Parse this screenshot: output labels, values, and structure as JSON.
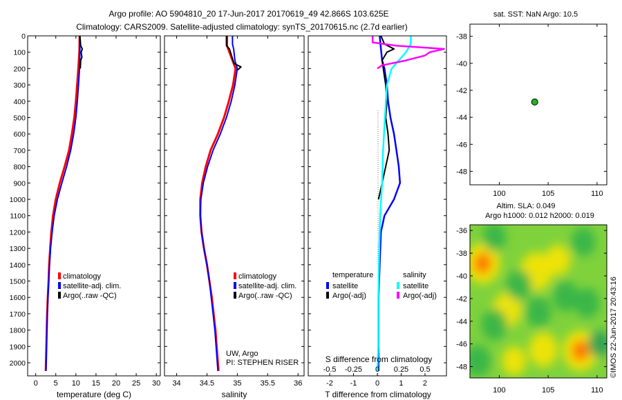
{
  "header": {
    "line1": "Argo profile: AO 5904810_20 17-Jun-2017 20170619_49 42.866S 103.625E",
    "line2": "Climatology: CARS2009. Satellite-adjusted climatology: synTS_20170615.nc (2.7d earlier)"
  },
  "colors": {
    "climatology": "#ff0000",
    "satellite": "#0000ff",
    "argo": "#000000",
    "argo_salinity_diff": "#ff00ff",
    "satellite_salinity_diff": "#00ffff",
    "float_marker": "#22b422"
  },
  "chart_data": [
    {
      "type": "line",
      "name": "temperature-profile",
      "xlabel": "temperature (deg C)",
      "xlim": [
        -2,
        31
      ],
      "ylim": [
        2080,
        0
      ],
      "xticks": [
        "0",
        "5",
        "10",
        "15",
        "20",
        "25",
        "30"
      ],
      "yticks": [
        "0",
        "100",
        "200",
        "300",
        "400",
        "500",
        "600",
        "700",
        "800",
        "900",
        "1000",
        "1100",
        "1200",
        "1300",
        "1400",
        "1500",
        "1600",
        "1700",
        "1800",
        "1900",
        "2000"
      ],
      "legend": [
        "climatology",
        "satellite-adj. clim.",
        "Argo(..raw -QC)"
      ],
      "series": [
        {
          "name": "climatology",
          "depth": [
            0,
            50,
            100,
            200,
            300,
            400,
            500,
            600,
            700,
            800,
            900,
            1000,
            1100,
            1200,
            1300,
            1400,
            1500,
            1600,
            1700,
            1800,
            1900,
            2000,
            2050
          ],
          "values": [
            10.9,
            10.9,
            10.85,
            10.6,
            10.3,
            10.0,
            9.6,
            9.0,
            8.3,
            7.2,
            6.0,
            5.0,
            4.3,
            3.9,
            3.6,
            3.35,
            3.2,
            3.0,
            2.85,
            2.75,
            2.65,
            2.55,
            2.5
          ]
        },
        {
          "name": "satellite-adj. clim.",
          "depth": [
            0,
            50,
            100,
            200,
            300,
            400,
            500,
            600,
            700,
            800,
            900,
            1000,
            1100,
            1200,
            1300,
            1400,
            1500,
            1600,
            1700,
            1800,
            1900,
            2000,
            2050
          ],
          "values": [
            11.0,
            11.0,
            11.0,
            10.9,
            10.65,
            10.35,
            10.0,
            9.45,
            8.7,
            7.7,
            6.5,
            5.4,
            4.6,
            4.1,
            3.7,
            3.45,
            3.25,
            3.05,
            2.9,
            2.8,
            2.7,
            2.6,
            2.55
          ]
        },
        {
          "name": "Argo(..raw -QC)",
          "depth": [
            0,
            60,
            80,
            100,
            130,
            150,
            200
          ],
          "values": [
            11.0,
            11.2,
            11.6,
            11.3,
            11.5,
            11.2,
            11.1
          ]
        }
      ]
    },
    {
      "type": "line",
      "name": "salinity-profile",
      "xlabel": "salinity",
      "xlim": [
        33.8,
        36.1
      ],
      "ylim": [
        2080,
        0
      ],
      "xticks": [
        "34",
        "34.5",
        "35",
        "35.5",
        "36"
      ],
      "legend": [
        "climatology",
        "satellite-adj. clim.",
        "Argo(..raw -QC)"
      ],
      "annotation": [
        "UW, Argo",
        "PI: STEPHEN RISER"
      ],
      "series": [
        {
          "name": "climatology",
          "depth": [
            0,
            60,
            80,
            150,
            200,
            300,
            400,
            500,
            600,
            700,
            800,
            900,
            1000,
            1100,
            1200,
            1300,
            1400,
            1500,
            1600,
            1700,
            1800,
            1900,
            2000,
            2050
          ],
          "values": [
            34.83,
            34.83,
            34.85,
            34.92,
            34.97,
            34.93,
            34.86,
            34.78,
            34.68,
            34.56,
            34.48,
            34.42,
            34.39,
            34.39,
            34.41,
            34.45,
            34.5,
            34.54,
            34.58,
            34.61,
            34.64,
            34.66,
            34.68,
            34.69
          ]
        },
        {
          "name": "satellite-adj. clim.",
          "depth": [
            0,
            50,
            80,
            150,
            200,
            300,
            400,
            500,
            600,
            700,
            800,
            900,
            1000,
            1100,
            1200,
            1300,
            1400,
            1500,
            1600,
            1700,
            1800,
            1900,
            2000,
            2050
          ],
          "values": [
            34.92,
            34.92,
            34.94,
            34.96,
            35.0,
            34.96,
            34.9,
            34.82,
            34.72,
            34.6,
            34.51,
            34.44,
            34.4,
            34.39,
            34.41,
            34.45,
            34.5,
            34.54,
            34.57,
            34.6,
            34.63,
            34.65,
            34.67,
            34.68
          ]
        },
        {
          "name": "Argo(..raw -QC)",
          "depth": [
            0,
            60,
            80,
            150,
            170,
            190,
            210
          ],
          "values": [
            34.82,
            34.82,
            34.87,
            34.93,
            34.95,
            35.06,
            35.0
          ]
        }
      ]
    },
    {
      "type": "line",
      "name": "difference-profile",
      "xlabel": "T difference from climatology",
      "x2label": "S difference from climatology",
      "xlim": [
        -2.9,
        2.9
      ],
      "ylim": [
        2080,
        0
      ],
      "xticks": [
        "-2",
        "-1",
        "0",
        "1",
        "2"
      ],
      "x2ticks": [
        "-0.5",
        "-0.25",
        "0",
        "0.25",
        "0.5"
      ],
      "legend_groups": [
        {
          "title": "temperature",
          "entries": [
            "satellite",
            "Argo(-adj)"
          ]
        },
        {
          "title": "salinity",
          "entries": [
            "satellite",
            "Argo(-adj)"
          ]
        }
      ],
      "series": [
        {
          "name": "temperature satellite",
          "depth": [
            0,
            80,
            150,
            200,
            300,
            400,
            500,
            600,
            700,
            800,
            900,
            1000,
            1100,
            1200,
            1400,
            1600,
            1800,
            2000,
            2050
          ],
          "values": [
            0.1,
            0.15,
            0.2,
            0.3,
            0.4,
            0.45,
            0.55,
            0.7,
            0.8,
            0.9,
            0.95,
            0.7,
            0.3,
            0.15,
            0.1,
            0.05,
            0.05,
            0.05,
            0.05
          ]
        },
        {
          "name": "temperature Argo(-adj)",
          "depth": [
            0,
            50,
            80,
            100,
            150,
            200,
            250,
            300,
            400,
            500,
            600,
            700,
            800,
            900,
            1000
          ],
          "values": [
            0.15,
            0.3,
            0.7,
            0.4,
            0.2,
            0.25,
            0.3,
            0.35,
            0.4,
            0.35,
            0.45,
            0.5,
            0.35,
            0.2,
            0.05
          ]
        },
        {
          "name": "salinity satellite",
          "depth": [
            0,
            50,
            100,
            200,
            300,
            500,
            700,
            900,
            1100,
            1300,
            1600,
            1900,
            2050
          ],
          "values": [
            0.35,
            0.35,
            0.3,
            0.15,
            0.1,
            0.08,
            0.06,
            0.05,
            0.03,
            0.02,
            0.01,
            0.01,
            0.0
          ]
        },
        {
          "name": "salinity Argo(-adj)",
          "depth": [
            0,
            40,
            60,
            80,
            100,
            120,
            150,
            180,
            200
          ],
          "values": [
            -0.05,
            -0.05,
            0.2,
            0.7,
            0.55,
            0.5,
            0.3,
            0.05,
            0.0
          ]
        }
      ]
    },
    {
      "type": "scatter",
      "name": "float-location-map",
      "title": "sat. SST: NaN Argo: 10.5",
      "xlim": [
        97,
        111
      ],
      "ylim": [
        -49,
        -37.1
      ],
      "xticks": [
        "100",
        "105",
        "110"
      ],
      "yticks": [
        "-38",
        "-40",
        "-42",
        "-44",
        "-46",
        "-48"
      ],
      "points": [
        {
          "lon": 103.625,
          "lat": -42.866
        }
      ]
    },
    {
      "type": "heatmap",
      "name": "altimetry-map",
      "title_line1": "Altim. SLA: 0.049",
      "title_line2": "Argo h1000: 0.012 h2000: 0.019",
      "xlim": [
        97,
        111
      ],
      "ylim": [
        -49,
        -35.5
      ],
      "xticks": [
        "100",
        "105",
        "110"
      ],
      "yticks": [
        "-36",
        "-38",
        "-40",
        "-42",
        "-44",
        "-46",
        "-48"
      ],
      "watermark": "©IMOS 22-Jun-2017 20:43:16",
      "blobs": [
        {
          "lon": 98.3,
          "lat": -38.9,
          "value": 0.9
        },
        {
          "lon": 103.8,
          "lat": -39.6,
          "value": 0.7
        },
        {
          "lon": 100.8,
          "lat": -43.0,
          "value": 0.55
        },
        {
          "lon": 106.0,
          "lat": -38.6,
          "value": 0.4
        },
        {
          "lon": 108.3,
          "lat": -46.6,
          "value": 1.0
        },
        {
          "lon": 104.5,
          "lat": -46.5,
          "value": 0.55
        },
        {
          "lon": 101.5,
          "lat": -47.5,
          "value": 0.35
        },
        {
          "lon": 99.5,
          "lat": -44.3,
          "value": -0.5
        },
        {
          "lon": 102.0,
          "lat": -40.8,
          "value": -0.45
        },
        {
          "lon": 106.8,
          "lat": -41.8,
          "value": -0.45
        },
        {
          "lon": 104.0,
          "lat": -43.2,
          "value": -0.45
        },
        {
          "lon": 110.2,
          "lat": -46.0,
          "value": -0.6
        },
        {
          "lon": 97.8,
          "lat": -47.5,
          "value": -0.5
        },
        {
          "lon": 108.6,
          "lat": -37.0,
          "value": -0.35
        },
        {
          "lon": 109.0,
          "lat": -42.4,
          "value": -0.4
        },
        {
          "lon": 99.5,
          "lat": -36.6,
          "value": -0.3
        }
      ]
    }
  ]
}
